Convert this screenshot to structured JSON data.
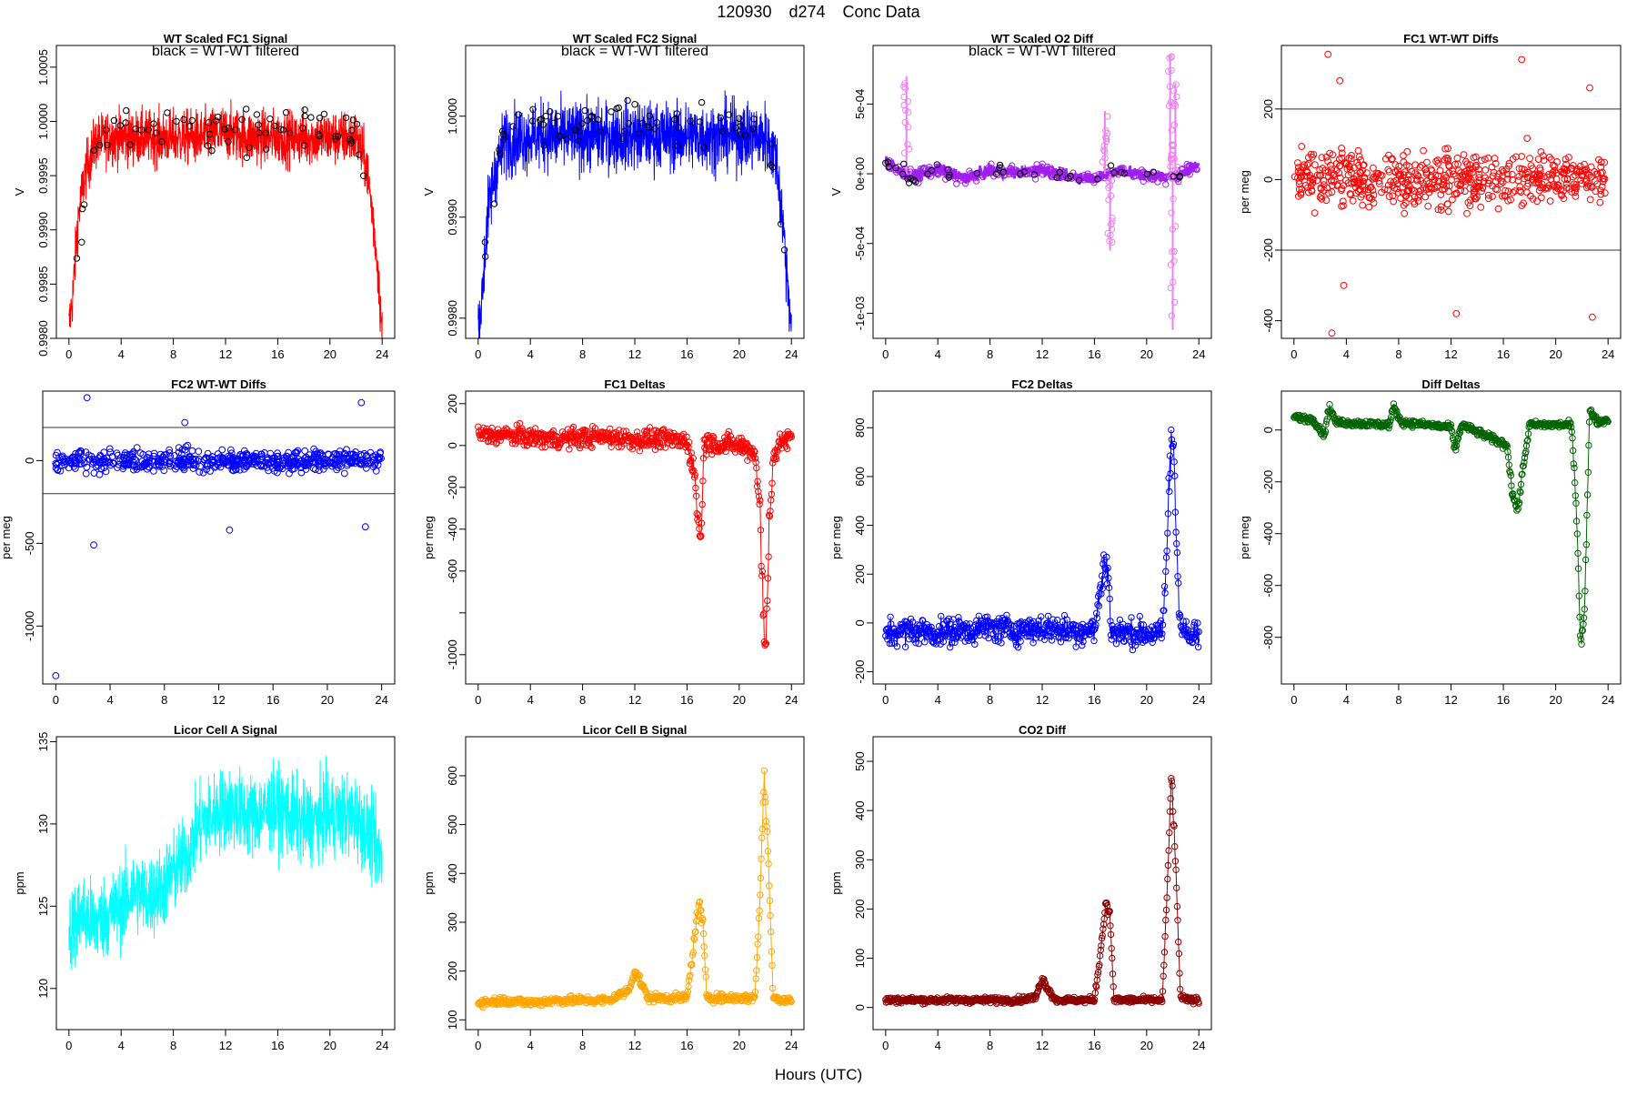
{
  "header": {
    "id": "120930",
    "day": "d274",
    "kind": "Conc Data"
  },
  "x_axis_label": "Hours (UTC)",
  "chart_data": [
    {
      "id": "wt-fc1",
      "type": "line",
      "title": "WT Scaled FC1 Signal",
      "legend": "black = WT-WT filtered",
      "ylabel": "V",
      "color": "#ff0000",
      "style": "dense-line",
      "xlim": [
        0,
        24
      ],
      "xticks": [
        0,
        4,
        8,
        12,
        16,
        20,
        24
      ],
      "ylim": [
        0.998,
        1.0007
      ],
      "yticks": [
        0.998,
        0.9985,
        0.999,
        0.9995,
        1.0,
        1.0005
      ],
      "ytick_labels": [
        "0.9980",
        "0.9985",
        "0.9990",
        "0.9995",
        "1.0000",
        "1.0005"
      ],
      "series": [
        {
          "name": "signal",
          "x": [
            0,
            0.3,
            0.7,
            1.2,
            2,
            3,
            4,
            6,
            8,
            10,
            12,
            14,
            16,
            18,
            20,
            22,
            22.8,
            23.3,
            23.7,
            24
          ],
          "values": [
            0.9981,
            0.9984,
            0.9991,
            0.9995,
            0.9998,
            0.99985,
            0.99985,
            0.99985,
            0.99985,
            0.99985,
            0.9999,
            0.99985,
            0.99985,
            0.99985,
            0.99985,
            0.99985,
            0.9996,
            0.9991,
            0.9986,
            0.998
          ],
          "spread": 0.00045
        },
        {
          "name": "WT-WT filtered",
          "x": [
            0.5,
            2,
            4,
            6,
            8,
            10,
            12,
            14,
            16,
            18,
            20,
            22,
            23.5
          ],
          "values": [
            0.9987,
            0.9998,
            0.99995,
            0.9999,
            0.99995,
            0.9999,
            0.99995,
            0.9999,
            0.99995,
            0.9999,
            0.99995,
            0.9999,
            0.9988
          ],
          "spread": 0.0002
        }
      ]
    },
    {
      "id": "wt-fc2",
      "type": "line",
      "title": "WT Scaled FC2 Signal",
      "legend": "black = WT-WT filtered",
      "ylabel": "V",
      "color": "#0000ff",
      "style": "dense-line",
      "xlim": [
        0,
        24
      ],
      "xticks": [
        0,
        4,
        8,
        12,
        16,
        20,
        24
      ],
      "ylim": [
        0.9978,
        1.0007
      ],
      "yticks": [
        0.998,
        0.999,
        1.0
      ],
      "ytick_labels": [
        "0.9980",
        "0.9990",
        "1.0000"
      ],
      "series": [
        {
          "name": "signal",
          "x": [
            0,
            0.3,
            0.7,
            1.2,
            2,
            4,
            6,
            8,
            10,
            12,
            14,
            16,
            18,
            20,
            22,
            22.8,
            23.3,
            23.7,
            24
          ],
          "values": [
            0.9979,
            0.9982,
            0.999,
            0.9994,
            0.99975,
            0.9998,
            0.9998,
            0.9998,
            0.9998,
            0.9998,
            0.9998,
            0.9998,
            0.9998,
            0.9998,
            0.9998,
            0.9996,
            0.999,
            0.9984,
            0.9979
          ],
          "spread": 0.0006
        },
        {
          "name": "WT-WT filtered",
          "x": [
            0.5,
            2,
            4,
            6,
            8,
            10,
            12,
            14,
            16,
            18,
            20,
            22,
            23.5
          ],
          "values": [
            0.9986,
            0.99985,
            0.99995,
            0.9999,
            0.99995,
            0.9999,
            0.99995,
            0.9999,
            0.99995,
            0.9999,
            0.99995,
            0.9999,
            0.9987
          ],
          "spread": 0.0002
        }
      ]
    },
    {
      "id": "wt-o2diff",
      "type": "line",
      "title": "WT Scaled O2 Diff",
      "legend": "black = WT-WT filtered",
      "ylabel": "V",
      "color": "#a020f0",
      "color2": "#ee82ee",
      "style": "o2diff",
      "xlim": [
        0,
        24
      ],
      "xticks": [
        0,
        4,
        8,
        12,
        16,
        20,
        24
      ],
      "ylim": [
        -0.00118,
        0.00092
      ],
      "yticks": [
        -0.001,
        -0.0005,
        0,
        0.0005
      ],
      "ytick_labels": [
        "-1e-03",
        "-5e-04",
        "0e+00",
        "5e-04"
      ],
      "series": [
        {
          "name": "diff",
          "x": [
            0,
            1,
            2,
            4,
            6,
            8,
            10,
            12,
            14,
            16,
            18,
            20,
            22,
            24
          ],
          "values": [
            0.0001,
            2e-05,
            -2e-05,
            3e-05,
            -3e-05,
            2e-05,
            1e-05,
            3e-05,
            -2e-05,
            -3e-05,
            3e-05,
            -2e-05,
            -2e-05,
            6e-05
          ],
          "spread": 9e-05
        },
        {
          "name": "excursions",
          "x": [
            1.6,
            16.8,
            17.2,
            21.8,
            22.0,
            22.2
          ],
          "values": [
            0.0007,
            0.00045,
            -0.00055,
            0.00085,
            -0.00112,
            0.00065
          ]
        }
      ]
    },
    {
      "id": "fc1-wtwt",
      "type": "scatter",
      "title": "FC1 WT-WT Diffs",
      "ylabel": "per meg",
      "color": "#ff0000",
      "style": "scatter",
      "xlim": [
        0,
        24
      ],
      "xticks": [
        0,
        4,
        8,
        12,
        16,
        20,
        24
      ],
      "ylim": [
        -450,
        380
      ],
      "yticks": [
        -400,
        -200,
        0,
        200
      ],
      "ytick_labels": [
        "-400",
        "-200",
        "0",
        "200"
      ],
      "hlines": [
        200,
        -200
      ],
      "series": [
        {
          "name": "diffs",
          "n": 600,
          "mean": 0,
          "spread": 95,
          "extremes": [
            [
              2.6,
              355
            ],
            [
              17.4,
              340
            ],
            [
              2.9,
              -435
            ],
            [
              12.4,
              -380
            ],
            [
              22.8,
              -390
            ],
            [
              3.5,
              280
            ],
            [
              22.6,
              260
            ],
            [
              3.8,
              -300
            ]
          ]
        }
      ]
    },
    {
      "id": "fc2-wtwt",
      "type": "scatter",
      "title": "FC2 WT-WT Diffs",
      "ylabel": "per meg",
      "color": "#0000ff",
      "style": "scatter",
      "xlim": [
        0,
        24
      ],
      "xticks": [
        0,
        4,
        8,
        12,
        16,
        20,
        24
      ],
      "ylim": [
        -1350,
        420
      ],
      "yticks": [
        -1000,
        -500,
        0
      ],
      "ytick_labels": [
        "-1000",
        "-500",
        "0"
      ],
      "hlines": [
        200,
        -200
      ],
      "series": [
        {
          "name": "diffs",
          "n": 600,
          "mean": 0,
          "spread": 80,
          "extremes": [
            [
              0,
              -1300
            ],
            [
              2.3,
              380
            ],
            [
              22.5,
              350
            ],
            [
              2.8,
              -510
            ],
            [
              12.8,
              -420
            ],
            [
              22.8,
              -400
            ],
            [
              9.5,
              230
            ]
          ]
        }
      ]
    },
    {
      "id": "fc1-deltas",
      "type": "line",
      "title": "FC1 Deltas",
      "ylabel": "per meg",
      "color": "#ff0000",
      "style": "jagged",
      "xlim": [
        0,
        24
      ],
      "xticks": [
        0,
        4,
        8,
        12,
        16,
        20,
        24
      ],
      "ylim": [
        -1140,
        260
      ],
      "yticks": [
        -1000,
        -800,
        -600,
        -400,
        -200,
        0,
        200
      ],
      "ytick_labels": [
        "-1000",
        "",
        "-600",
        "-400",
        "-200",
        "0",
        "200"
      ],
      "series": [
        {
          "name": "deltas",
          "x": [
            0,
            2,
            4,
            6,
            8,
            10,
            12,
            14,
            16,
            16.5,
            16.8,
            17.1,
            17.3,
            18,
            20,
            21.2,
            21.6,
            21.9,
            22.1,
            22.3,
            22.6,
            23.2,
            24
          ],
          "values": [
            50,
            50,
            40,
            30,
            40,
            40,
            30,
            30,
            20,
            -100,
            -320,
            -450,
            20,
            10,
            0,
            -30,
            -300,
            -950,
            -900,
            -350,
            -60,
            20,
            30
          ],
          "spread": 45
        }
      ]
    },
    {
      "id": "fc2-deltas",
      "type": "line",
      "title": "FC2 Deltas",
      "ylabel": "per meg",
      "color": "#0000ff",
      "style": "jagged",
      "xlim": [
        0,
        24
      ],
      "xticks": [
        0,
        4,
        8,
        12,
        16,
        20,
        24
      ],
      "ylim": [
        -250,
        950
      ],
      "yticks": [
        -200,
        0,
        200,
        400,
        600,
        800
      ],
      "ytick_labels": [
        "-200",
        "0",
        "200",
        "400",
        "600",
        "800"
      ],
      "series": [
        {
          "name": "deltas",
          "x": [
            0,
            2,
            4,
            6,
            8,
            10,
            12,
            14,
            16,
            16.5,
            16.8,
            17.1,
            17.3,
            18,
            20,
            21.2,
            21.6,
            21.9,
            22.1,
            22.3,
            22.6,
            23.2,
            24
          ],
          "values": [
            -40,
            -30,
            -40,
            -30,
            -20,
            -30,
            -20,
            -30,
            -30,
            150,
            260,
            180,
            -40,
            -40,
            -40,
            -50,
            350,
            800,
            700,
            300,
            0,
            -60,
            -50
          ],
          "spread": 55
        }
      ]
    },
    {
      "id": "diff-deltas",
      "type": "line",
      "title": "Diff Deltas",
      "ylabel": "per meg",
      "color": "#006400",
      "style": "jagged",
      "xlim": [
        0,
        24
      ],
      "xticks": [
        0,
        4,
        8,
        12,
        16,
        20,
        24
      ],
      "ylim": [
        -980,
        150
      ],
      "yticks": [
        -800,
        -600,
        -400,
        -200,
        0
      ],
      "ytick_labels": [
        "-800",
        "-600",
        "-400",
        "-200",
        "0"
      ],
      "series": [
        {
          "name": "deltas",
          "x": [
            0,
            1.5,
            2.3,
            2.7,
            3.2,
            7.3,
            7.6,
            8.2,
            12,
            12.3,
            12.8,
            16.3,
            16.7,
            17.1,
            17.5,
            18,
            21.2,
            21.6,
            21.9,
            22.2,
            22.6,
            23.2,
            24
          ],
          "values": [
            50,
            40,
            -20,
            90,
            30,
            20,
            90,
            30,
            10,
            -80,
            20,
            -60,
            -250,
            -310,
            -150,
            20,
            20,
            -320,
            -820,
            -700,
            80,
            30,
            40
          ],
          "spread": 12
        }
      ]
    },
    {
      "id": "licor-a",
      "type": "line",
      "title": "Licor Cell A Signal",
      "ylabel": "ppm",
      "color": "#00ffff",
      "style": "dense-line",
      "xlim": [
        0,
        24
      ],
      "xticks": [
        0,
        4,
        8,
        12,
        16,
        20,
        24
      ],
      "ylim": [
        117.5,
        135.3
      ],
      "yticks": [
        120,
        125,
        130,
        135
      ],
      "ytick_labels": [
        "120",
        "125",
        "130",
        "135"
      ],
      "series": [
        {
          "name": "signal",
          "x": [
            0,
            1,
            2,
            3,
            4,
            5,
            6,
            7,
            8,
            9,
            10,
            12,
            14,
            16,
            18,
            20,
            22,
            24
          ],
          "values": [
            123.5,
            124.5,
            124,
            124.5,
            125,
            126,
            125.5,
            126,
            127,
            128,
            130,
            131,
            130.5,
            131,
            130,
            130.5,
            130.5,
            128
          ],
          "spread": 4.5
        }
      ]
    },
    {
      "id": "licor-b",
      "type": "line",
      "title": "Licor Cell B Signal",
      "ylabel": "ppm",
      "color": "#ffa500",
      "style": "jagged",
      "xlim": [
        0,
        24
      ],
      "xticks": [
        0,
        4,
        8,
        12,
        16,
        20,
        24
      ],
      "ylim": [
        80,
        680
      ],
      "yticks": [
        100,
        200,
        300,
        400,
        500,
        600
      ],
      "ytick_labels": [
        "100",
        "200",
        "300",
        "400",
        "500",
        "600"
      ],
      "series": [
        {
          "name": "signal",
          "x": [
            0,
            2,
            4,
            6,
            8,
            10,
            11.5,
            12,
            12.4,
            13,
            16,
            16.5,
            16.9,
            17.2,
            17.5,
            18,
            21.2,
            21.6,
            21.9,
            22.2,
            22.6,
            23.2,
            24
          ],
          "values": [
            135,
            140,
            135,
            140,
            140,
            140,
            160,
            200,
            180,
            145,
            145,
            250,
            340,
            300,
            150,
            145,
            145,
            350,
            600,
            450,
            150,
            140,
            140
          ],
          "spread": 8
        }
      ]
    },
    {
      "id": "co2-diff",
      "type": "line",
      "title": "CO2 Diff",
      "ylabel": "ppm",
      "color": "#8b0000",
      "style": "jagged",
      "xlim": [
        0,
        24
      ],
      "xticks": [
        0,
        4,
        8,
        12,
        16,
        20,
        24
      ],
      "ylim": [
        -45,
        550
      ],
      "yticks": [
        0,
        100,
        200,
        300,
        400,
        500
      ],
      "ytick_labels": [
        "0",
        "100",
        "200",
        "300",
        "400",
        "500"
      ],
      "series": [
        {
          "name": "diff",
          "x": [
            0,
            2,
            4,
            6,
            8,
            10,
            11.5,
            12,
            12.4,
            13,
            16,
            16.5,
            16.9,
            17.2,
            17.5,
            18,
            21.2,
            21.6,
            21.9,
            22.2,
            22.6,
            23.2,
            24
          ],
          "values": [
            15,
            15,
            15,
            15,
            15,
            15,
            20,
            60,
            40,
            15,
            15,
            120,
            220,
            180,
            15,
            15,
            15,
            250,
            480,
            300,
            20,
            15,
            15
          ],
          "spread": 6
        }
      ]
    }
  ]
}
